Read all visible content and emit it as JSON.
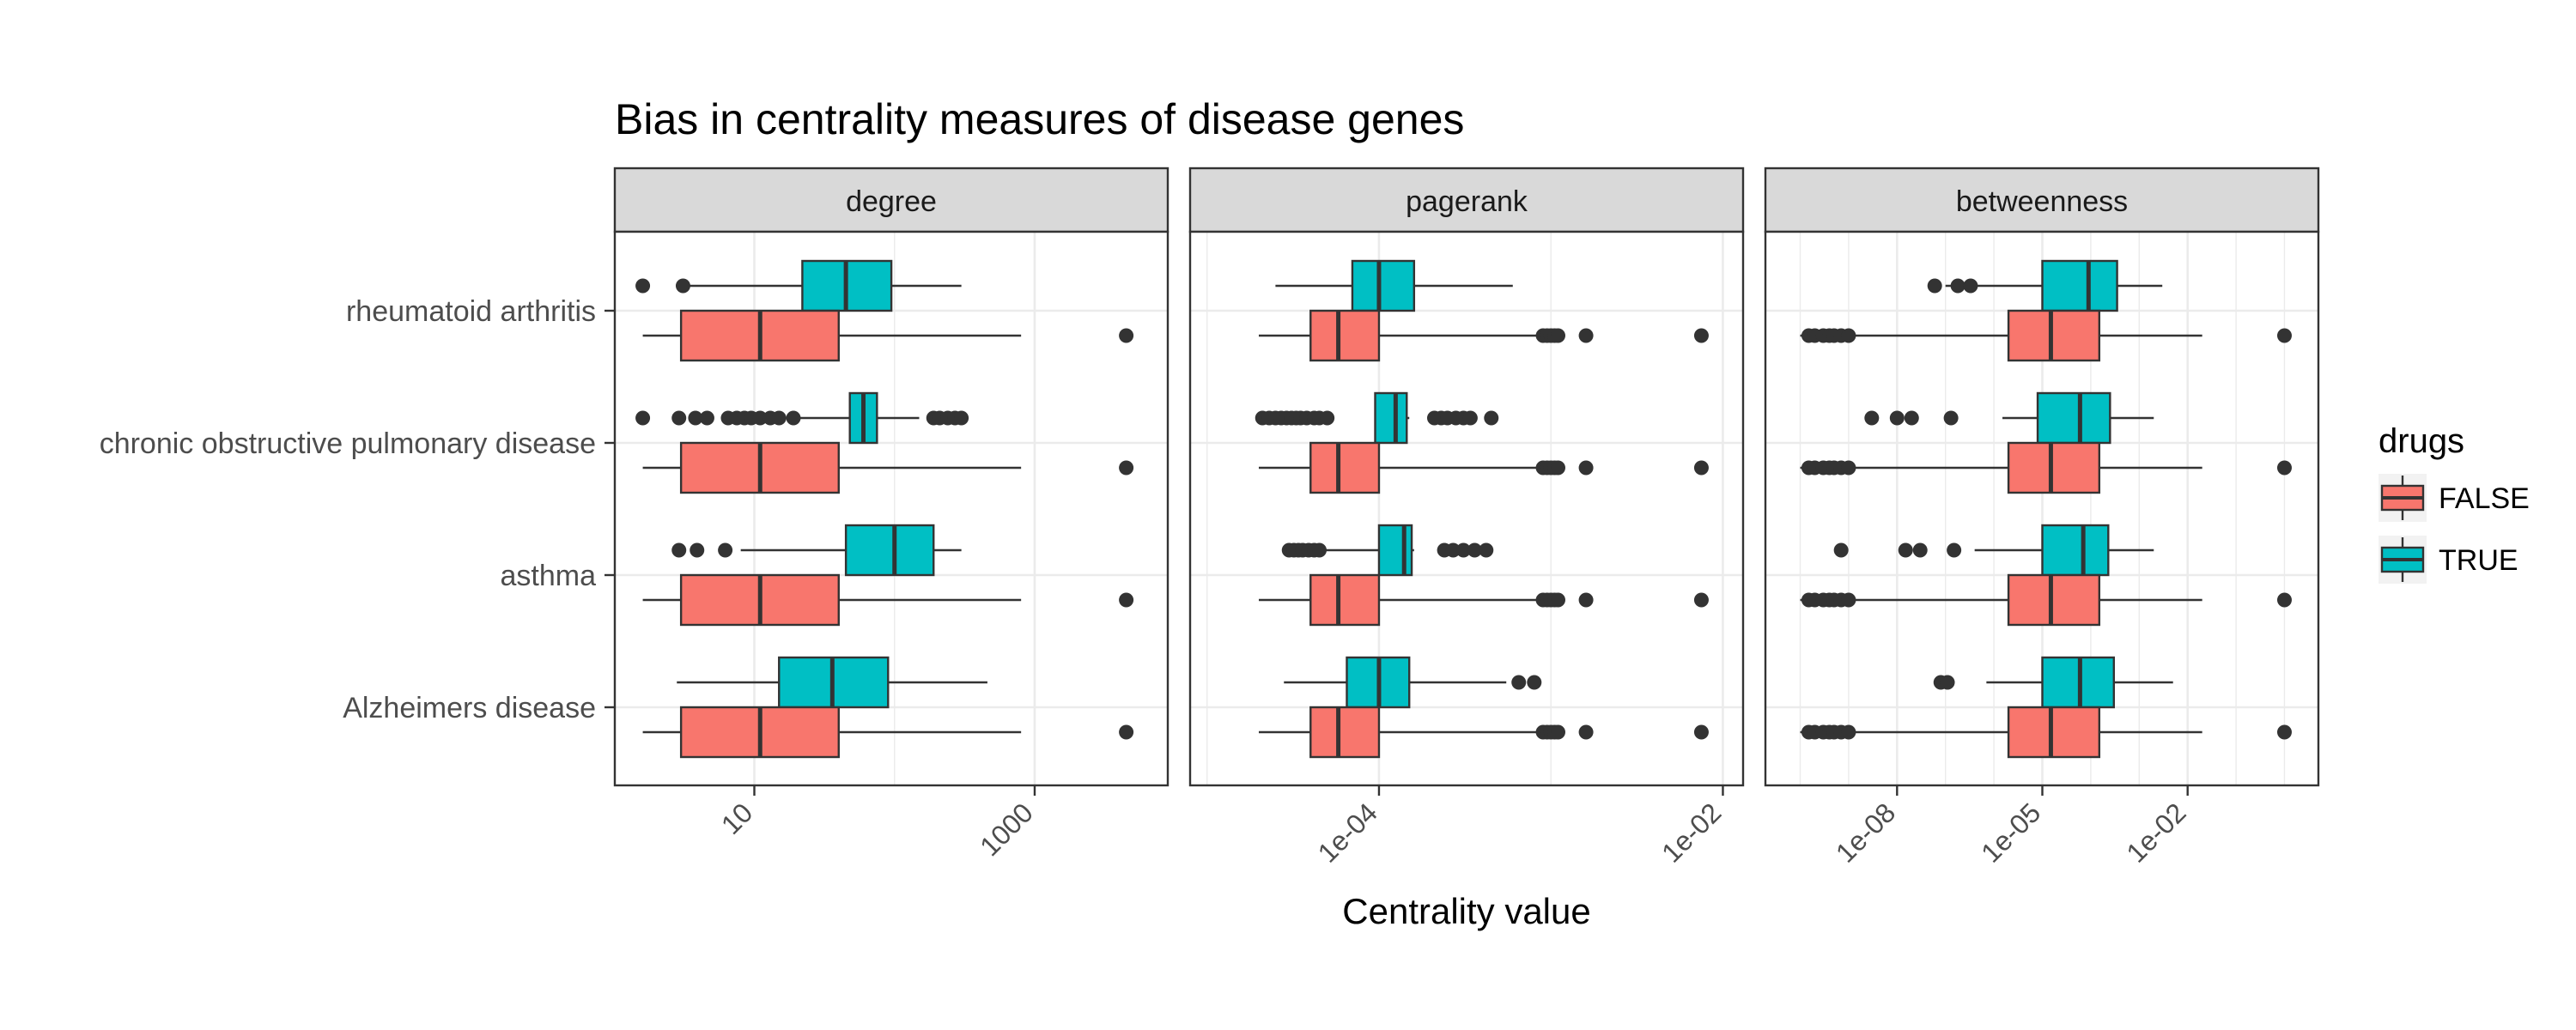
{
  "chart_data": {
    "type": "boxplot",
    "title": "Bias in centrality measures of disease genes",
    "xlabel": "Centrality value",
    "ylabel": "",
    "x_scale": "log10",
    "orientation": "horizontal",
    "grid": true,
    "legend": {
      "title": "drugs",
      "position": "right",
      "entries": [
        {
          "name": "FALSE",
          "color": "#F8766D"
        },
        {
          "name": "TRUE",
          "color": "#00BFC4"
        }
      ]
    },
    "categories": [
      "rheumatoid arthritis",
      "chronic obstructive pulmonary disease",
      "asthma",
      "Alzheimers disease"
    ],
    "facets": [
      {
        "name": "degree",
        "xlim": [
          1.5,
          6000
        ],
        "ticks": [
          {
            "value": 10,
            "label": "10"
          },
          {
            "value": 1000,
            "label": "1000"
          }
        ],
        "groups": [
          {
            "category": "rheumatoid arthritis",
            "drugs": "TRUE",
            "min": 2.8,
            "q1": 22,
            "median": 45,
            "q3": 95,
            "max": 300,
            "outliers": [
              1.6,
              3.1
            ]
          },
          {
            "category": "rheumatoid arthritis",
            "drugs": "FALSE",
            "min": 1.6,
            "q1": 3,
            "median": 11,
            "q3": 40,
            "max": 800,
            "outliers": [
              4500
            ]
          },
          {
            "category": "chronic obstructive pulmonary disease",
            "drugs": "TRUE",
            "min": 18,
            "q1": 48,
            "median": 60,
            "q3": 75,
            "max": 150,
            "outliers": [
              1.6,
              2.9,
              3.8,
              4.6,
              6.5,
              7.5,
              8.5,
              9.5,
              11,
              13,
              15,
              19,
              190,
              210,
              240,
              270,
              300
            ]
          },
          {
            "category": "chronic obstructive pulmonary disease",
            "drugs": "FALSE",
            "min": 1.6,
            "q1": 3,
            "median": 11,
            "q3": 40,
            "max": 800,
            "outliers": [
              4500
            ]
          },
          {
            "category": "asthma",
            "drugs": "TRUE",
            "min": 8,
            "q1": 45,
            "median": 100,
            "q3": 190,
            "max": 300,
            "outliers": [
              2.9,
              3.9,
              6.2
            ]
          },
          {
            "category": "asthma",
            "drugs": "FALSE",
            "min": 1.6,
            "q1": 3,
            "median": 11,
            "q3": 40,
            "max": 800,
            "outliers": [
              4500
            ]
          },
          {
            "category": "Alzheimers disease",
            "drugs": "TRUE",
            "min": 2.8,
            "q1": 15,
            "median": 36,
            "q3": 90,
            "max": 460,
            "outliers": []
          },
          {
            "category": "Alzheimers disease",
            "drugs": "FALSE",
            "min": 1.6,
            "q1": 3,
            "median": 11,
            "q3": 40,
            "max": 800,
            "outliers": [
              4500
            ]
          }
        ]
      },
      {
        "name": "pagerank",
        "xlim": [
          1.1e-05,
          0.0095
        ],
        "ticks": [
          {
            "value": 0.0001,
            "label": "1e-04"
          },
          {
            "value": 0.01,
            "label": "1e-02"
          }
        ],
        "groups": [
          {
            "category": "rheumatoid arthritis",
            "drugs": "TRUE",
            "min": 2.5e-05,
            "q1": 7e-05,
            "median": 0.0001,
            "q3": 0.00016,
            "max": 0.0006,
            "outliers": []
          },
          {
            "category": "rheumatoid arthritis",
            "drugs": "FALSE",
            "min": 2e-05,
            "q1": 4e-05,
            "median": 5.8e-05,
            "q3": 0.0001,
            "max": 0.0009,
            "outliers": [
              0.0009,
              0.00095,
              0.001,
              0.00105,
              0.0011,
              0.0016,
              0.0075
            ]
          },
          {
            "category": "chronic obstructive pulmonary disease",
            "drugs": "TRUE",
            "min": 9.5e-05,
            "q1": 9.5e-05,
            "median": 0.000125,
            "q3": 0.000145,
            "max": 0.00015,
            "outliers": [
              2.1e-05,
              2.3e-05,
              2.5e-05,
              2.7e-05,
              2.9e-05,
              3.1e-05,
              3.3e-05,
              3.5e-05,
              3.8e-05,
              4.2e-05,
              4.5e-05,
              5e-05,
              0.00021,
              0.00023,
              0.00025,
              0.00028,
              0.00031,
              0.00034,
              0.00045
            ]
          },
          {
            "category": "chronic obstructive pulmonary disease",
            "drugs": "FALSE",
            "min": 2e-05,
            "q1": 4e-05,
            "median": 5.8e-05,
            "q3": 0.0001,
            "max": 0.0009,
            "outliers": [
              0.0009,
              0.00095,
              0.001,
              0.00105,
              0.0011,
              0.0016,
              0.0075
            ]
          },
          {
            "category": "asthma",
            "drugs": "TRUE",
            "min": 4e-05,
            "q1": 0.0001,
            "median": 0.00014,
            "q3": 0.000155,
            "max": 0.00016,
            "outliers": [
              3e-05,
              3.2e-05,
              3.4e-05,
              3.6e-05,
              3.9e-05,
              4.2e-05,
              4.5e-05,
              0.00024,
              0.00027,
              0.00031,
              0.00036,
              0.00042
            ]
          },
          {
            "category": "asthma",
            "drugs": "FALSE",
            "min": 2e-05,
            "q1": 4e-05,
            "median": 5.8e-05,
            "q3": 0.0001,
            "max": 0.0009,
            "outliers": [
              0.0009,
              0.00095,
              0.001,
              0.00105,
              0.0011,
              0.0016,
              0.0075
            ]
          },
          {
            "category": "Alzheimers disease",
            "drugs": "TRUE",
            "min": 2.8e-05,
            "q1": 6.5e-05,
            "median": 0.0001,
            "q3": 0.00015,
            "max": 0.00055,
            "outliers": [
              0.00065,
              0.0008
            ]
          },
          {
            "category": "Alzheimers disease",
            "drugs": "FALSE",
            "min": 2e-05,
            "q1": 4e-05,
            "median": 5.8e-05,
            "q3": 0.0001,
            "max": 0.0009,
            "outliers": [
              0.0009,
              0.00095,
              0.001,
              0.00105,
              0.0011,
              0.0016,
              0.0075
            ]
          }
        ]
      },
      {
        "name": "betweenness",
        "xlim": [
          6e-11,
          1.6
        ],
        "ticks": [
          {
            "value": 1e-08,
            "label": "1e-08"
          },
          {
            "value": 1e-05,
            "label": "1e-05"
          },
          {
            "value": 0.01,
            "label": "1e-02"
          }
        ],
        "groups": [
          {
            "category": "rheumatoid arthritis",
            "drugs": "TRUE",
            "min": 1e-07,
            "q1": 1e-05,
            "median": 9e-05,
            "q3": 0.00035,
            "max": 0.003,
            "outliers": [
              6e-08,
              1.8e-07,
              3.3e-07
            ]
          },
          {
            "category": "rheumatoid arthritis",
            "drugs": "FALSE",
            "min": 1e-10,
            "q1": 2e-06,
            "median": 1.5e-05,
            "q3": 0.00015,
            "max": 0.02,
            "outliers": [
              1.5e-10,
              2e-10,
              3e-10,
              4e-10,
              5e-10,
              7e-10,
              1e-09,
              1.0
            ]
          },
          {
            "category": "chronic obstructive pulmonary disease",
            "drugs": "TRUE",
            "min": 1.5e-06,
            "q1": 8e-06,
            "median": 6e-05,
            "q3": 0.00025,
            "max": 0.002,
            "outliers": [
              3e-09,
              1e-08,
              2e-08,
              1.3e-07
            ]
          },
          {
            "category": "chronic obstructive pulmonary disease",
            "drugs": "FALSE",
            "min": 1e-10,
            "q1": 2e-06,
            "median": 1.5e-05,
            "q3": 0.00015,
            "max": 0.02,
            "outliers": [
              1.5e-10,
              2e-10,
              3e-10,
              4e-10,
              5e-10,
              7e-10,
              1e-09,
              1.0
            ]
          },
          {
            "category": "asthma",
            "drugs": "TRUE",
            "min": 4e-07,
            "q1": 1e-05,
            "median": 7e-05,
            "q3": 0.00023,
            "max": 0.002,
            "outliers": [
              7e-10,
              1.5e-08,
              3e-08,
              1.5e-07
            ]
          },
          {
            "category": "asthma",
            "drugs": "FALSE",
            "min": 1e-10,
            "q1": 2e-06,
            "median": 1.5e-05,
            "q3": 0.00015,
            "max": 0.02,
            "outliers": [
              1.5e-10,
              2e-10,
              3e-10,
              4e-10,
              5e-10,
              7e-10,
              1e-09,
              1.0
            ]
          },
          {
            "category": "Alzheimers disease",
            "drugs": "TRUE",
            "min": 7e-07,
            "q1": 1e-05,
            "median": 6e-05,
            "q3": 0.0003,
            "max": 0.005,
            "outliers": [
              8e-08,
              1.1e-07
            ]
          },
          {
            "category": "Alzheimers disease",
            "drugs": "FALSE",
            "min": 1e-10,
            "q1": 2e-06,
            "median": 1.5e-05,
            "q3": 0.00015,
            "max": 0.02,
            "outliers": [
              1.5e-10,
              2e-10,
              3e-10,
              4e-10,
              5e-10,
              7e-10,
              1e-09,
              1.0
            ]
          }
        ]
      }
    ]
  }
}
